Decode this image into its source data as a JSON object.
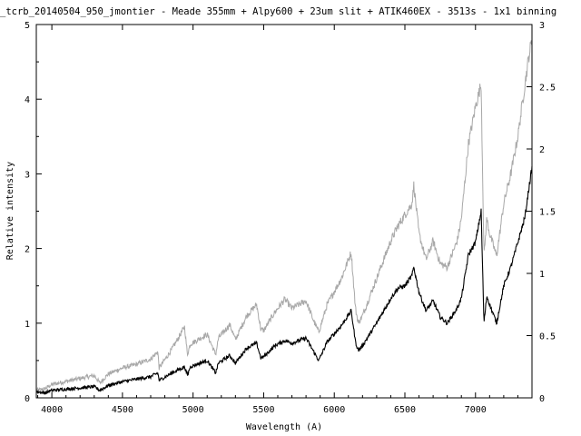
{
  "chart_data": {
    "type": "line",
    "title": "_tcrb_20140504_950_jmontier - Meade 355mm + Alpy600 + 23um slit + ATIK460EX - 3513s - 1x1 binning",
    "xlabel": "Wavelength (A)",
    "ylabel": "Relative intensity",
    "xlim": [
      3890,
      7400
    ],
    "ylim": [
      0,
      5
    ],
    "y2lim": [
      0,
      3
    ],
    "xticks": [
      "4000",
      "4500",
      "5000",
      "5500",
      "6000",
      "6500",
      "7000"
    ],
    "yticks": [
      "0",
      "1",
      "2",
      "3",
      "4",
      "5"
    ],
    "y2ticks": [
      "0",
      "0.5",
      "1",
      "1.5",
      "2",
      "2.5",
      "3"
    ],
    "grid": false,
    "legend": "none",
    "series": [
      {
        "axis": "y2",
        "color": "#000000",
        "x": [
          3890,
          3950,
          4000,
          4100,
          4200,
          4300,
          4340,
          4400,
          4500,
          4600,
          4700,
          4750,
          4760,
          4850,
          4940,
          4960,
          4980,
          5100,
          5160,
          5180,
          5260,
          5300,
          5380,
          5450,
          5480,
          5500,
          5580,
          5650,
          5700,
          5800,
          5850,
          5890,
          5950,
          6050,
          6120,
          6150,
          6170,
          6200,
          6300,
          6400,
          6450,
          6500,
          6550,
          6563,
          6600,
          6650,
          6700,
          6750,
          6800,
          6870,
          6900,
          6950,
          7000,
          7040,
          7060,
          7080,
          7100,
          7150,
          7200,
          7250,
          7300,
          7350,
          7380,
          7400
        ],
        "y": [
          0.05,
          0.04,
          0.06,
          0.07,
          0.08,
          0.09,
          0.06,
          0.1,
          0.13,
          0.15,
          0.17,
          0.2,
          0.14,
          0.2,
          0.25,
          0.18,
          0.25,
          0.3,
          0.2,
          0.28,
          0.34,
          0.28,
          0.4,
          0.44,
          0.32,
          0.33,
          0.42,
          0.46,
          0.44,
          0.48,
          0.38,
          0.3,
          0.45,
          0.58,
          0.7,
          0.45,
          0.38,
          0.42,
          0.6,
          0.8,
          0.88,
          0.9,
          0.98,
          1.05,
          0.85,
          0.7,
          0.78,
          0.65,
          0.6,
          0.72,
          0.8,
          1.15,
          1.25,
          1.5,
          0.6,
          0.82,
          0.75,
          0.6,
          0.9,
          1.05,
          1.25,
          1.45,
          1.7,
          1.85
        ]
      },
      {
        "axis": "y",
        "color": "#a8a8a8",
        "x": [
          3890,
          3950,
          4000,
          4100,
          4200,
          4300,
          4340,
          4400,
          4500,
          4600,
          4700,
          4750,
          4760,
          4850,
          4940,
          4960,
          4980,
          5100,
          5160,
          5180,
          5260,
          5300,
          5380,
          5450,
          5480,
          5500,
          5580,
          5650,
          5700,
          5800,
          5850,
          5890,
          5950,
          6050,
          6120,
          6150,
          6170,
          6200,
          6300,
          6400,
          6450,
          6500,
          6550,
          6563,
          6600,
          6650,
          6700,
          6750,
          6800,
          6870,
          6900,
          6950,
          7000,
          7040,
          7060,
          7080,
          7100,
          7150,
          7200,
          7250,
          7300,
          7350,
          7380,
          7400
        ],
        "y": [
          0.1,
          0.12,
          0.18,
          0.22,
          0.26,
          0.3,
          0.2,
          0.32,
          0.4,
          0.45,
          0.52,
          0.62,
          0.4,
          0.65,
          0.95,
          0.58,
          0.72,
          0.85,
          0.58,
          0.8,
          0.98,
          0.78,
          1.1,
          1.25,
          0.92,
          0.9,
          1.15,
          1.32,
          1.2,
          1.3,
          1.05,
          0.88,
          1.25,
          1.6,
          1.95,
          1.2,
          1.0,
          1.1,
          1.6,
          2.1,
          2.3,
          2.45,
          2.6,
          2.85,
          2.2,
          1.85,
          2.1,
          1.8,
          1.75,
          2.1,
          2.4,
          3.4,
          3.9,
          4.2,
          1.9,
          2.4,
          2.2,
          1.9,
          2.6,
          3.0,
          3.5,
          4.2,
          4.6,
          4.8
        ]
      }
    ]
  }
}
